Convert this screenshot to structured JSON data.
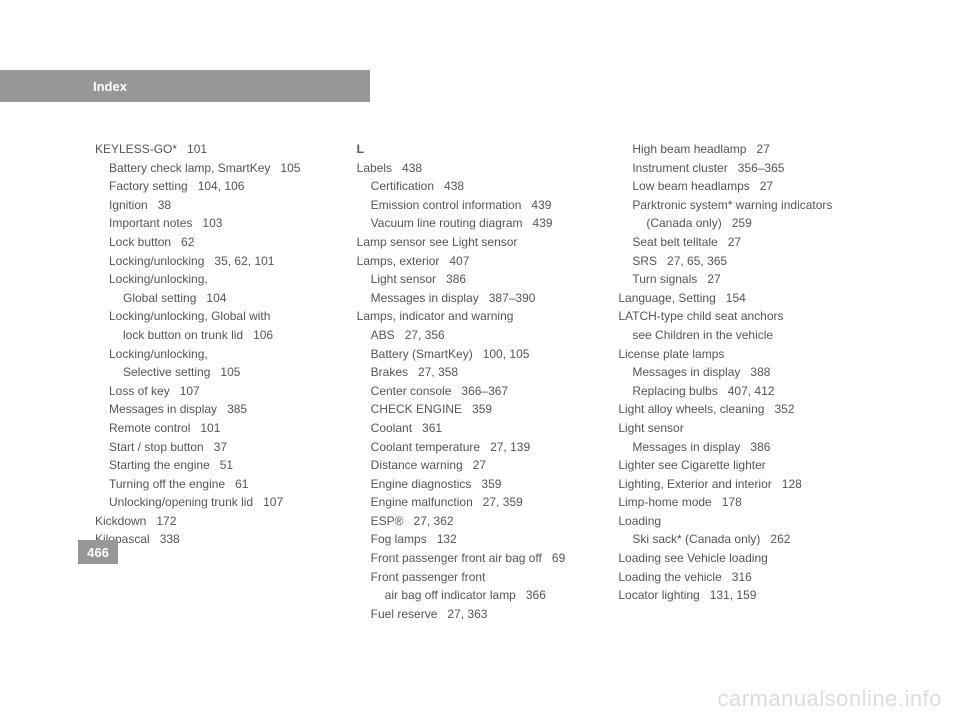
{
  "header": {
    "title": "Index"
  },
  "pageNumber": "466",
  "watermark": "carmanualsonline.info",
  "columns": [
    {
      "lines": [
        {
          "cls": "entry",
          "text": "KEYLESS-GO*",
          "pages": "101"
        },
        {
          "cls": "sub1",
          "text": "Battery check lamp, SmartKey",
          "pages": "105"
        },
        {
          "cls": "sub1",
          "text": "Factory setting",
          "pages": "104, 106"
        },
        {
          "cls": "sub1",
          "text": "Ignition",
          "pages": "38"
        },
        {
          "cls": "sub1",
          "text": "Important notes",
          "pages": "103"
        },
        {
          "cls": "sub1",
          "text": "Lock button",
          "pages": "62"
        },
        {
          "cls": "sub1",
          "text": "Locking/unlocking",
          "pages": "35, 62, 101"
        },
        {
          "cls": "sub1",
          "text": "Locking/unlocking,",
          "pages": ""
        },
        {
          "cls": "sub2",
          "text": "Global setting",
          "pages": "104"
        },
        {
          "cls": "sub1",
          "text": "Locking/unlocking, Global with",
          "pages": ""
        },
        {
          "cls": "sub2",
          "text": "lock button on trunk lid",
          "pages": "106"
        },
        {
          "cls": "sub1",
          "text": "Locking/unlocking,",
          "pages": ""
        },
        {
          "cls": "sub2",
          "text": "Selective setting",
          "pages": "105"
        },
        {
          "cls": "sub1",
          "text": "Loss of key",
          "pages": "107"
        },
        {
          "cls": "sub1",
          "text": "Messages in display",
          "pages": "385"
        },
        {
          "cls": "sub1",
          "text": "Remote control",
          "pages": "101"
        },
        {
          "cls": "sub1",
          "text": "Start / stop button",
          "pages": "37"
        },
        {
          "cls": "sub1",
          "text": "Starting the engine",
          "pages": "51"
        },
        {
          "cls": "sub1",
          "text": "Turning off the engine",
          "pages": "61"
        },
        {
          "cls": "sub1",
          "text": "Unlocking/opening trunk lid",
          "pages": "107"
        },
        {
          "cls": "entry",
          "text": "Kickdown",
          "pages": "172"
        },
        {
          "cls": "entry",
          "text": "Kilopascal",
          "pages": "338"
        }
      ]
    },
    {
      "lines": [
        {
          "cls": "section-letter",
          "text": "L",
          "pages": ""
        },
        {
          "cls": "entry",
          "text": "Labels",
          "pages": "438"
        },
        {
          "cls": "sub1",
          "text": "Certification",
          "pages": "438"
        },
        {
          "cls": "sub1",
          "text": "Emission control information",
          "pages": "439"
        },
        {
          "cls": "sub1",
          "text": "Vacuum line routing diagram",
          "pages": "439"
        },
        {
          "cls": "entry",
          "text": "Lamp sensor see Light sensor",
          "pages": ""
        },
        {
          "cls": "entry",
          "text": "Lamps, exterior",
          "pages": "407"
        },
        {
          "cls": "sub1",
          "text": "Light sensor",
          "pages": "386"
        },
        {
          "cls": "sub1",
          "text": "Messages in display",
          "pages": "387–390"
        },
        {
          "cls": "entry",
          "text": "Lamps, indicator and warning",
          "pages": ""
        },
        {
          "cls": "sub1",
          "text": "ABS",
          "pages": "27, 356"
        },
        {
          "cls": "sub1",
          "text": "Battery (SmartKey)",
          "pages": "100, 105"
        },
        {
          "cls": "sub1",
          "text": "Brakes",
          "pages": "27, 358"
        },
        {
          "cls": "sub1",
          "text": "Center console",
          "pages": "366–367"
        },
        {
          "cls": "sub1",
          "text": "CHECK ENGINE",
          "pages": "359"
        },
        {
          "cls": "sub1",
          "text": "Coolant",
          "pages": "361"
        },
        {
          "cls": "sub1",
          "text": "Coolant temperature",
          "pages": "27, 139"
        },
        {
          "cls": "sub1",
          "text": "Distance warning",
          "pages": "27"
        },
        {
          "cls": "sub1",
          "text": "Engine diagnostics",
          "pages": "359"
        },
        {
          "cls": "sub1",
          "text": "Engine malfunction",
          "pages": "27, 359"
        },
        {
          "cls": "sub1",
          "text": "ESP®",
          "pages": "27, 362"
        },
        {
          "cls": "sub1",
          "text": "Fog lamps",
          "pages": "132"
        },
        {
          "cls": "sub1",
          "text": "Front passenger front air bag off",
          "pages": "69"
        },
        {
          "cls": "sub1",
          "text": "Front passenger front",
          "pages": ""
        },
        {
          "cls": "sub2",
          "text": "air bag off indicator lamp",
          "pages": "366"
        },
        {
          "cls": "sub1",
          "text": "Fuel reserve",
          "pages": "27, 363"
        }
      ]
    },
    {
      "lines": [
        {
          "cls": "sub1",
          "text": "High beam headlamp",
          "pages": "27"
        },
        {
          "cls": "sub1",
          "text": "Instrument cluster",
          "pages": "356–365"
        },
        {
          "cls": "sub1",
          "text": "Low beam headlamps",
          "pages": "27"
        },
        {
          "cls": "sub1",
          "text": "Parktronic system* warning indicators",
          "pages": ""
        },
        {
          "cls": "sub2",
          "text": "(Canada only)",
          "pages": "259"
        },
        {
          "cls": "sub1",
          "text": "Seat belt telltale",
          "pages": "27"
        },
        {
          "cls": "sub1",
          "text": "SRS",
          "pages": "27, 65, 365"
        },
        {
          "cls": "sub1",
          "text": "Turn signals",
          "pages": "27"
        },
        {
          "cls": "entry",
          "text": "Language, Setting",
          "pages": "154"
        },
        {
          "cls": "entry",
          "text": "LATCH-type child seat anchors",
          "pages": ""
        },
        {
          "cls": "sub1",
          "text": "see Children in the vehicle",
          "pages": ""
        },
        {
          "cls": "entry",
          "text": "License plate lamps",
          "pages": ""
        },
        {
          "cls": "sub1",
          "text": "Messages in display",
          "pages": "388"
        },
        {
          "cls": "sub1",
          "text": "Replacing bulbs",
          "pages": "407, 412"
        },
        {
          "cls": "entry",
          "text": "Light alloy wheels, cleaning",
          "pages": "352"
        },
        {
          "cls": "entry",
          "text": "Light sensor",
          "pages": ""
        },
        {
          "cls": "sub1",
          "text": "Messages in display",
          "pages": "386"
        },
        {
          "cls": "entry",
          "text": "Lighter see Cigarette lighter",
          "pages": ""
        },
        {
          "cls": "entry",
          "text": "Lighting, Exterior and interior",
          "pages": "128"
        },
        {
          "cls": "entry",
          "text": "Limp-home mode",
          "pages": "178"
        },
        {
          "cls": "entry",
          "text": "Loading",
          "pages": ""
        },
        {
          "cls": "sub1",
          "text": "Ski sack* (Canada only)",
          "pages": "262"
        },
        {
          "cls": "entry",
          "text": "Loading see Vehicle loading",
          "pages": ""
        },
        {
          "cls": "entry",
          "text": "Loading the vehicle",
          "pages": "316"
        },
        {
          "cls": "entry",
          "text": "Locator lighting",
          "pages": "131, 159"
        }
      ]
    }
  ]
}
